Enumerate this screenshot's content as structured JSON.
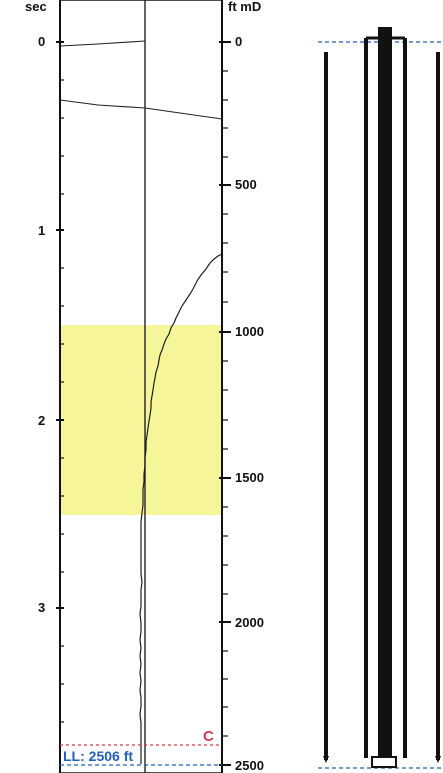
{
  "header": {
    "left_unit": "sec",
    "right_unit": "ft mD"
  },
  "time_axis": {
    "ticks": [
      "0",
      "1",
      "2",
      "3"
    ]
  },
  "depth_axis": {
    "ticks": [
      "0",
      "500",
      "1000",
      "1500",
      "2000",
      "2500"
    ]
  },
  "highlight": {
    "color": "#f7f59a"
  },
  "markers": {
    "c_label": "C",
    "c_color": "#d23b4b",
    "ll_label": "LL: 2506 ft",
    "ll_color": "#1f5fbf"
  },
  "well_schematic": {
    "fill": "#111111"
  }
}
